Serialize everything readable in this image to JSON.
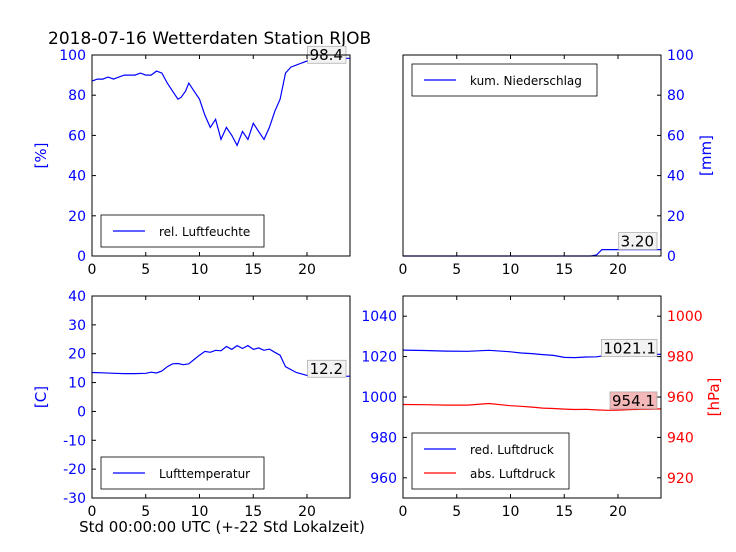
{
  "title": "2018-07-16 Wetterdaten Station RJOB",
  "xlabel": "Std 00:00:00 UTC (+-22 Std Lokalzeit)",
  "colors": {
    "blue": "#0000ff",
    "red": "#ff0000",
    "black": "#000000",
    "annot_red_bg": "#f4b8b8"
  },
  "chart_data": [
    {
      "type": "line",
      "panel": "top-left",
      "ylabel": "[%]",
      "xlim": [
        0,
        24
      ],
      "ylim": [
        0,
        100
      ],
      "xticks": [
        0,
        5,
        10,
        15,
        20
      ],
      "yticks": [
        0,
        20,
        40,
        60,
        80,
        100
      ],
      "legend_loc": "lower-center",
      "annotation": "98.4",
      "series": [
        {
          "name": "rel. Luftfeuchte",
          "color": "#0000ff",
          "x": [
            0,
            0.5,
            1,
            1.5,
            2,
            2.5,
            3,
            3.5,
            4,
            4.5,
            5,
            5.5,
            6,
            6.5,
            7,
            7.5,
            8,
            8.3,
            8.7,
            9,
            9.5,
            10,
            10.5,
            11,
            11.5,
            12,
            12.5,
            13,
            13.5,
            14,
            14.5,
            15,
            15.5,
            16,
            16.5,
            17,
            17.5,
            18,
            18.5,
            19,
            19.5,
            20,
            21,
            22,
            23,
            24
          ],
          "y": [
            87,
            88,
            88,
            89,
            88,
            89,
            90,
            90,
            90,
            91,
            90,
            90,
            92,
            91,
            86,
            82,
            78,
            79,
            82,
            86,
            82,
            78,
            70,
            64,
            68,
            58,
            64,
            60,
            55,
            62,
            58,
            66,
            62,
            58,
            64,
            72,
            78,
            91,
            94,
            95,
            96,
            97,
            97,
            98,
            98,
            98.4
          ]
        }
      ]
    },
    {
      "type": "line",
      "panel": "top-right",
      "ylabel": "[mm]",
      "xlim": [
        0,
        24
      ],
      "ylim": [
        0,
        100
      ],
      "xticks": [
        0,
        5,
        10,
        15,
        20
      ],
      "yticks": [
        0,
        20,
        40,
        60,
        80,
        100
      ],
      "legend_loc": "upper-left",
      "annotation": "3.20",
      "series": [
        {
          "name": "kum. Niederschlag",
          "color": "#0000ff",
          "x": [
            0,
            17.5,
            18,
            18.5,
            24
          ],
          "y": [
            0,
            0,
            0.5,
            3.2,
            3.2
          ]
        }
      ]
    },
    {
      "type": "line",
      "panel": "bottom-left",
      "ylabel": "[C]",
      "xlim": [
        0,
        24
      ],
      "ylim": [
        -30,
        40
      ],
      "xticks": [
        0,
        5,
        10,
        15,
        20
      ],
      "yticks": [
        -30,
        -20,
        -10,
        0,
        10,
        20,
        30,
        40
      ],
      "legend_loc": "lower-center",
      "annotation": "12.2",
      "series": [
        {
          "name": "Lufttemperatur",
          "color": "#0000ff",
          "x": [
            0,
            1,
            2,
            3,
            4,
            5,
            5.5,
            6,
            6.5,
            7,
            7.5,
            8,
            8.5,
            9,
            9.5,
            10,
            10.5,
            11,
            11.5,
            12,
            12.5,
            13,
            13.5,
            14,
            14.5,
            15,
            15.5,
            16,
            16.5,
            17,
            17.5,
            18,
            18.5,
            19,
            20,
            21,
            22,
            23,
            24
          ],
          "y": [
            13.5,
            13.4,
            13.2,
            13.1,
            13.1,
            13.2,
            13.6,
            13.3,
            14.0,
            15.5,
            16.5,
            16.6,
            16.2,
            16.5,
            18.0,
            19.5,
            20.8,
            20.5,
            21.2,
            21.0,
            22.5,
            21.5,
            22.8,
            21.8,
            22.8,
            21.5,
            22.0,
            21.2,
            21.6,
            20.5,
            19.5,
            15.5,
            14.5,
            13.5,
            12.5,
            12.0,
            12.2,
            12.1,
            12.2
          ]
        }
      ]
    },
    {
      "type": "line",
      "panel": "bottom-right",
      "ylabel": "[hPa]",
      "xlim": [
        0,
        24
      ],
      "ylim_left": [
        950,
        1050
      ],
      "ylim_right": [
        910,
        1010
      ],
      "xticks": [
        0,
        5,
        10,
        15,
        20
      ],
      "yticks_left": [
        960,
        980,
        1000,
        1020,
        1040
      ],
      "yticks_right": [
        920,
        940,
        960,
        980,
        1000
      ],
      "legend_loc": "lower-left",
      "annotations": [
        "1021.1",
        "954.1"
      ],
      "series": [
        {
          "name": "red. Luftdruck",
          "color": "#0000ff",
          "axis": "left",
          "x": [
            0,
            2,
            4,
            6,
            8,
            10,
            11,
            12,
            13,
            14,
            15,
            16,
            17,
            18,
            19,
            20,
            21,
            22,
            23,
            24
          ],
          "y": [
            1023.2,
            1023.0,
            1022.7,
            1022.6,
            1023.1,
            1022.4,
            1021.8,
            1021.5,
            1021.0,
            1020.6,
            1019.6,
            1019.5,
            1019.8,
            1019.9,
            1020.7,
            1021.2,
            1021.5,
            1021.2,
            1021.2,
            1021.1
          ]
        },
        {
          "name": "abs. Luftdruck",
          "color": "#ff0000",
          "axis": "right",
          "x": [
            0,
            2,
            4,
            6,
            8,
            10,
            11,
            12,
            13,
            14,
            15,
            16,
            17,
            18,
            19,
            20,
            21,
            22,
            23,
            24
          ],
          "y": [
            956.3,
            956.2,
            956.0,
            956.0,
            956.8,
            955.7,
            955.4,
            955.0,
            954.5,
            954.3,
            954.0,
            953.8,
            953.9,
            953.6,
            953.4,
            953.5,
            953.7,
            953.9,
            954.0,
            954.1
          ]
        }
      ]
    }
  ]
}
